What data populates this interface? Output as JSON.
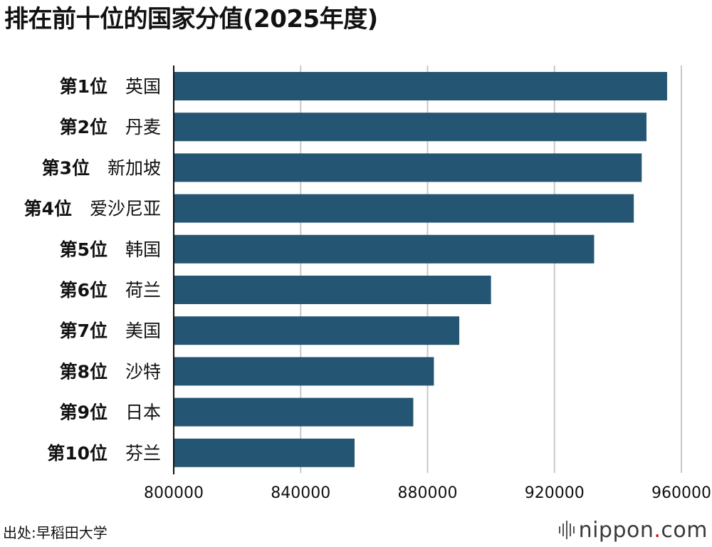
{
  "title": "排在前十位的国家分值(2025年度)",
  "source": "出处:早稻田大学",
  "logo": {
    "name": "nippon",
    "dot": ".",
    "suffix": "com",
    "accent": "#d7000f"
  },
  "colors": {
    "bar": "#245673",
    "grid": "#c8c8c8",
    "axis": "#111111"
  },
  "chart_data": {
    "type": "bar",
    "orientation": "horizontal",
    "title": "排在前十位的国家分值(2025年度)",
    "categories": [
      {
        "rank": "第1位",
        "country": "英国"
      },
      {
        "rank": "第2位",
        "country": "丹麦"
      },
      {
        "rank": "第3位",
        "country": "新加坡"
      },
      {
        "rank": "第4位",
        "country": "爱沙尼亚"
      },
      {
        "rank": "第5位",
        "country": "韩国"
      },
      {
        "rank": "第6位",
        "country": "荷兰"
      },
      {
        "rank": "第7位",
        "country": "美国"
      },
      {
        "rank": "第8位",
        "country": "沙特"
      },
      {
        "rank": "第9位",
        "country": "日本"
      },
      {
        "rank": "第10位",
        "country": "芬兰"
      }
    ],
    "values": [
      955500,
      949000,
      947500,
      945000,
      932500,
      900000,
      890000,
      882000,
      875500,
      857000
    ],
    "xlim": [
      800000,
      960000
    ],
    "xticks": [
      "800000",
      "840000",
      "880000",
      "920000",
      "960000"
    ],
    "grid": "vertical"
  }
}
